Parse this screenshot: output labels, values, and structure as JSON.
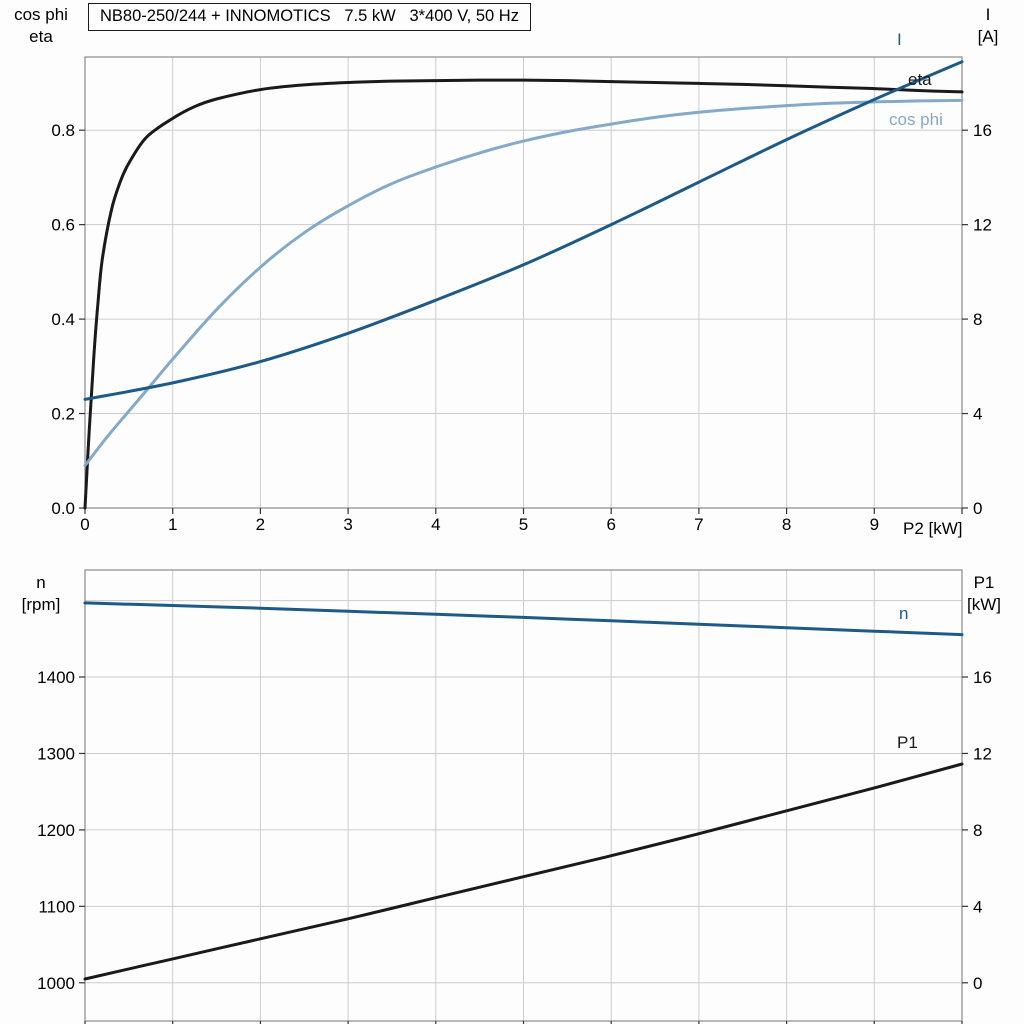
{
  "title_box": {
    "text": "NB80-250/244 + INNOMOTICS   7.5 kW   3*400 V, 50 Hz"
  },
  "colors": {
    "black": "#1a1a1a",
    "dark_blue": "#1d5a87",
    "light_blue": "#84a9c9",
    "grid": "#cccccc",
    "frame": "#8a8a8a"
  },
  "chart_data": [
    {
      "type": "line",
      "x_label": "P2 [kW]",
      "x_range": [
        0,
        10
      ],
      "x_grid": [
        1,
        2,
        3,
        4,
        5,
        6,
        7,
        8,
        9
      ],
      "x_ticks": [
        {
          "v": 0,
          "label": "0"
        },
        {
          "v": 1,
          "label": "1"
        },
        {
          "v": 2,
          "label": "2"
        },
        {
          "v": 3,
          "label": "3"
        },
        {
          "v": 4,
          "label": "4"
        },
        {
          "v": 5,
          "label": "5"
        },
        {
          "v": 6,
          "label": "6"
        },
        {
          "v": 7,
          "label": "7"
        },
        {
          "v": 8,
          "label": "8"
        },
        {
          "v": 9,
          "label": "9"
        }
      ],
      "left_axis": {
        "title": [
          "cos phi",
          "eta"
        ],
        "range": [
          0,
          0.955
        ],
        "grid": [
          0.2,
          0.4,
          0.6,
          0.8
        ],
        "ticks": [
          {
            "v": 0.0,
            "label": "0.0"
          },
          {
            "v": 0.2,
            "label": "0.2"
          },
          {
            "v": 0.4,
            "label": "0.4"
          },
          {
            "v": 0.6,
            "label": "0.6"
          },
          {
            "v": 0.8,
            "label": "0.8"
          }
        ]
      },
      "right_axis": {
        "title": [
          "I",
          "[A]"
        ],
        "range": [
          0,
          19.1
        ],
        "grid": [],
        "ticks": [
          {
            "v": 0,
            "label": "0"
          },
          {
            "v": 4,
            "label": "4"
          },
          {
            "v": 8,
            "label": "8"
          },
          {
            "v": 12,
            "label": "12"
          },
          {
            "v": 16,
            "label": "16"
          }
        ]
      },
      "series": [
        {
          "name": "eta",
          "label": "eta",
          "axis": "left",
          "color": "black",
          "x": [
            0,
            0.05,
            0.1,
            0.15,
            0.2,
            0.3,
            0.4,
            0.5,
            0.7,
            1,
            1.25,
            1.5,
            2,
            2.5,
            3,
            3.5,
            4,
            4.5,
            5,
            5.5,
            6,
            6.5,
            7,
            7.5,
            8,
            8.5,
            9,
            9.5,
            10
          ],
          "y": [
            0,
            0.17,
            0.32,
            0.44,
            0.53,
            0.63,
            0.69,
            0.73,
            0.785,
            0.825,
            0.85,
            0.866,
            0.886,
            0.896,
            0.901,
            0.904,
            0.905,
            0.906,
            0.906,
            0.905,
            0.903,
            0.901,
            0.899,
            0.897,
            0.894,
            0.891,
            0.888,
            0.884,
            0.881
          ]
        },
        {
          "name": "cos phi",
          "label": "cos phi",
          "axis": "left",
          "color": "light_blue",
          "x": [
            0,
            0.25,
            0.5,
            0.75,
            1,
            1.5,
            2,
            2.5,
            3,
            3.5,
            4,
            4.5,
            5,
            5.5,
            6,
            6.5,
            7,
            7.5,
            8,
            8.5,
            9,
            9.5,
            10
          ],
          "y": [
            0.09,
            0.15,
            0.205,
            0.26,
            0.315,
            0.42,
            0.51,
            0.583,
            0.64,
            0.687,
            0.722,
            0.752,
            0.777,
            0.797,
            0.813,
            0.827,
            0.838,
            0.846,
            0.852,
            0.857,
            0.86,
            0.862,
            0.863
          ]
        },
        {
          "name": "I",
          "label": "I",
          "axis": "right",
          "color": "dark_blue",
          "x": [
            0,
            1,
            2,
            3,
            4,
            5,
            6,
            7,
            8,
            9,
            10
          ],
          "y": [
            4.6,
            5.3,
            6.2,
            7.4,
            8.8,
            10.3,
            12.0,
            13.8,
            15.6,
            17.3,
            18.9
          ]
        }
      ]
    },
    {
      "type": "line",
      "x_label": "",
      "x_range": [
        0,
        10
      ],
      "x_grid": [
        1,
        2,
        3,
        4,
        5,
        6,
        7,
        8,
        9
      ],
      "x_ticks": [],
      "left_axis": {
        "title": [
          "n",
          "[rpm]"
        ],
        "range": [
          950,
          1540
        ],
        "grid": [
          1000,
          1100,
          1200,
          1300,
          1400,
          1500
        ],
        "ticks": [
          {
            "v": 1000,
            "label": "1000"
          },
          {
            "v": 1100,
            "label": "1100"
          },
          {
            "v": 1200,
            "label": "1200"
          },
          {
            "v": 1300,
            "label": "1300"
          },
          {
            "v": 1400,
            "label": "1400"
          }
        ]
      },
      "right_axis": {
        "title": [
          "P1",
          "[kW]"
        ],
        "range": [
          -2,
          21.6
        ],
        "grid": [],
        "ticks": [
          {
            "v": 0,
            "label": "0"
          },
          {
            "v": 4,
            "label": "4"
          },
          {
            "v": 8,
            "label": "8"
          },
          {
            "v": 12,
            "label": "12"
          },
          {
            "v": 16,
            "label": "16"
          }
        ]
      },
      "series": [
        {
          "name": "n",
          "label": "n",
          "axis": "left",
          "color": "dark_blue",
          "x": [
            0,
            1,
            2,
            3,
            4,
            5,
            6,
            7,
            8,
            9,
            10
          ],
          "y": [
            1497,
            1493.5,
            1490,
            1486,
            1482,
            1478,
            1473.5,
            1469,
            1464.5,
            1460,
            1455.5
          ]
        },
        {
          "name": "P1",
          "label": "P1",
          "axis": "right",
          "color": "black",
          "x": [
            0,
            1,
            2,
            3,
            4,
            5,
            6,
            7,
            8,
            9,
            10
          ],
          "y": [
            0.2,
            1.25,
            2.3,
            3.35,
            4.45,
            5.55,
            6.65,
            7.8,
            9.0,
            10.2,
            11.45
          ]
        }
      ]
    }
  ]
}
